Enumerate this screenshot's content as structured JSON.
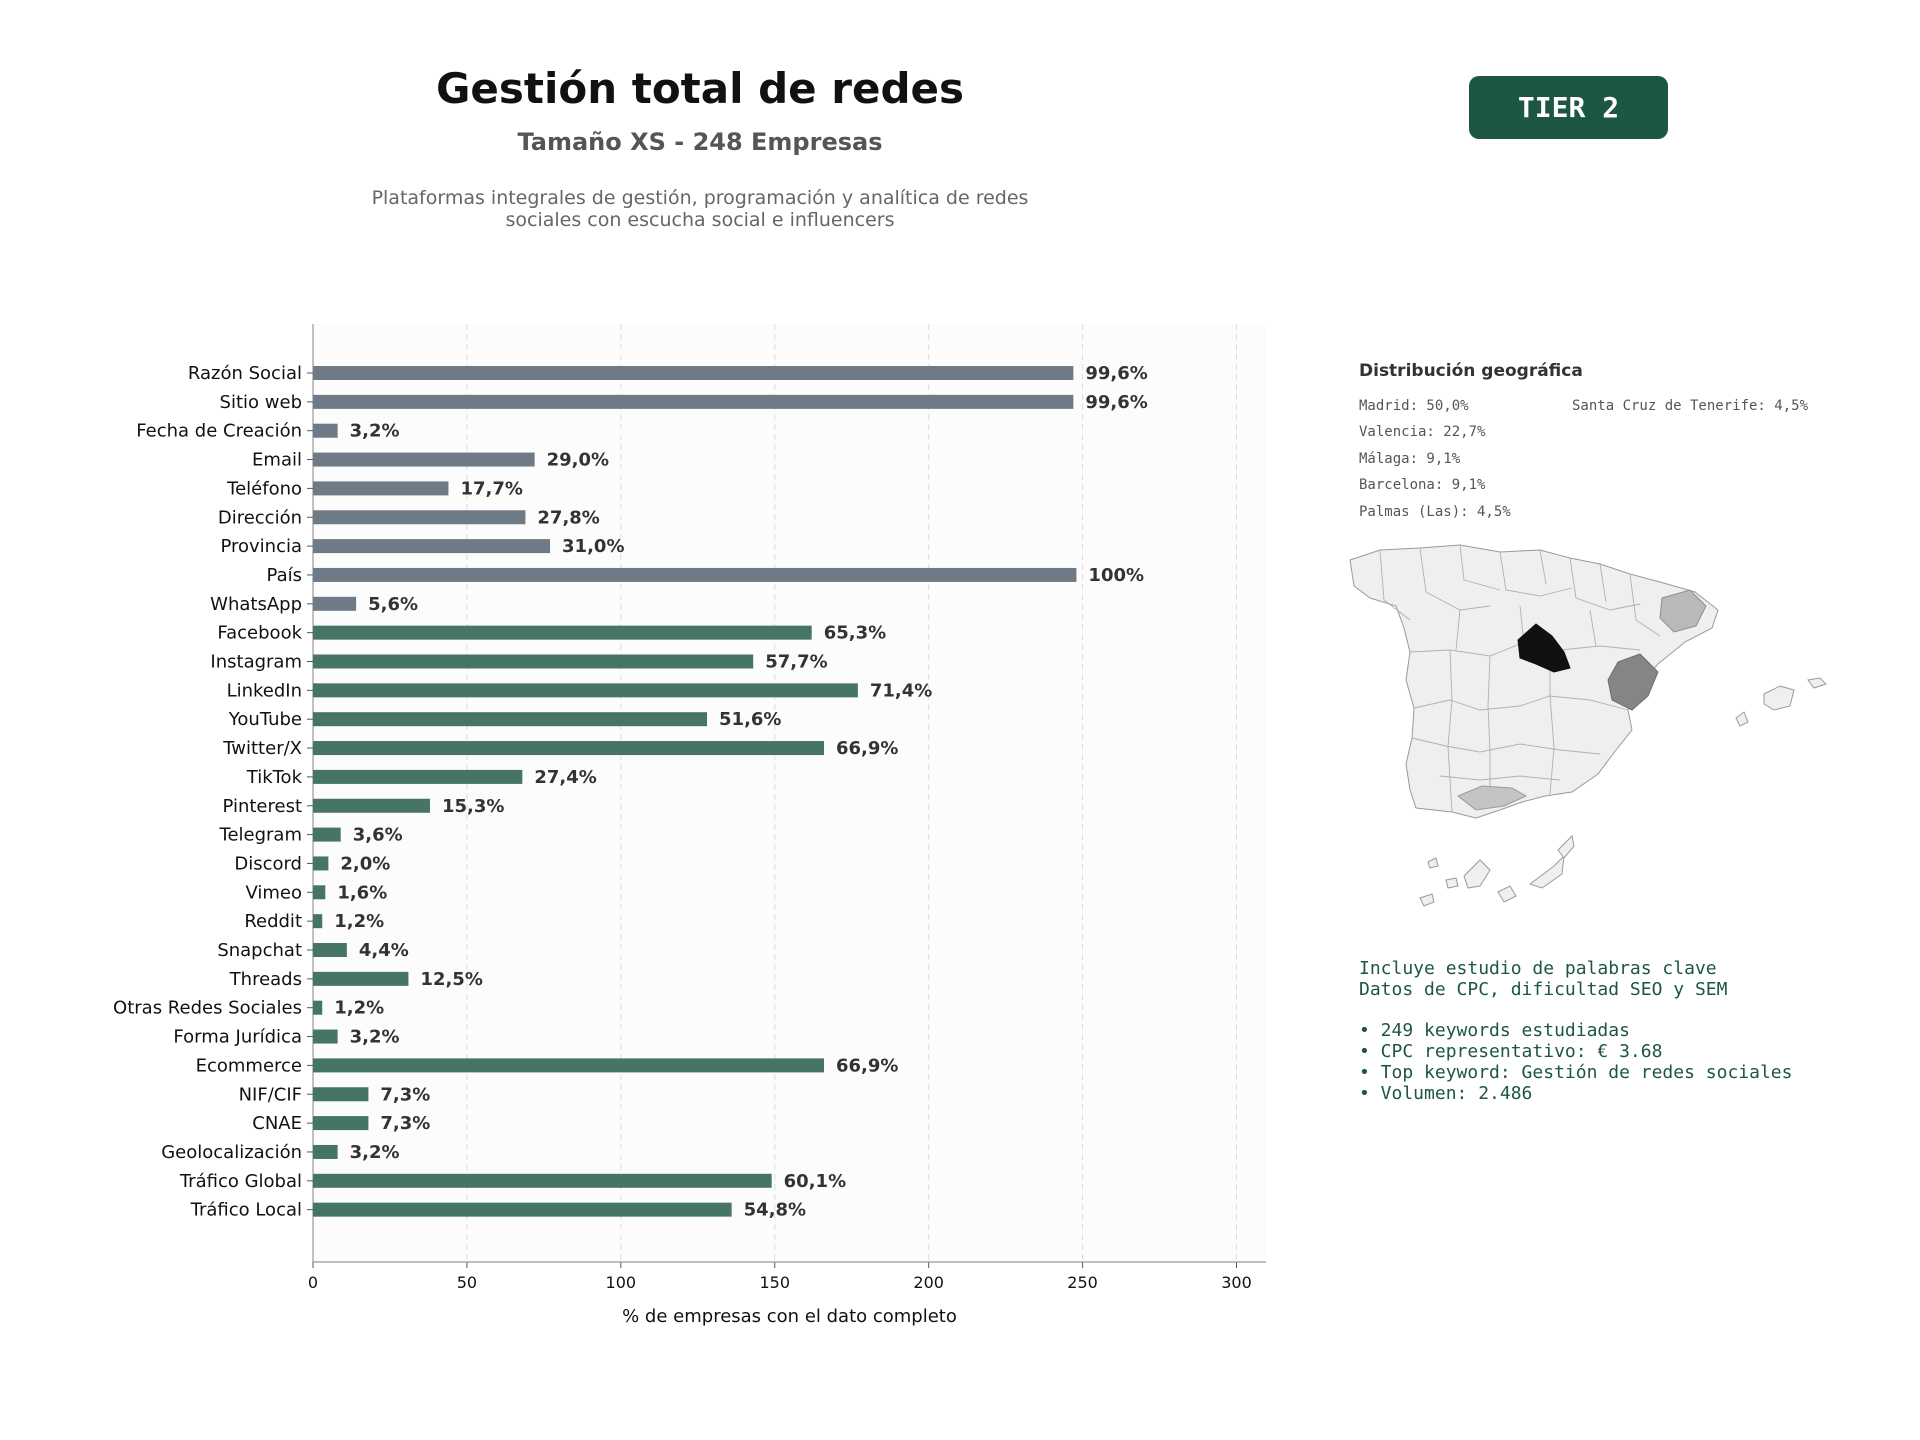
{
  "header": {
    "title": "Gestión total de redes",
    "subtitle": "Tamaño XS - 248 Empresas",
    "description_line1": "Plataformas integrales de gestión, programación y analítica de redes",
    "description_line2": "sociales con escucha social e influencers",
    "tier_label": "TIER 2"
  },
  "chart_data": {
    "type": "bar",
    "orientation": "horizontal",
    "xlabel": "% de empresas con el dato completo",
    "xlim": [
      0,
      310
    ],
    "xticks": [
      0,
      50,
      100,
      150,
      200,
      250,
      300
    ],
    "grid": true,
    "categories": [
      "Razón Social",
      "Sitio web",
      "Fecha de Creación",
      "Email",
      "Teléfono",
      "Dirección",
      "Provincia",
      "País",
      "WhatsApp",
      "Facebook",
      "Instagram",
      "LinkedIn",
      "YouTube",
      "Twitter/X",
      "TikTok",
      "Pinterest",
      "Telegram",
      "Discord",
      "Vimeo",
      "Reddit",
      "Snapchat",
      "Threads",
      "Otras Redes Sociales",
      "Forma Jurídica",
      "Ecommerce",
      "NIF/CIF",
      "CNAE",
      "Geolocalización",
      "Tráfico Global",
      "Tráfico Local"
    ],
    "values": [
      247,
      247,
      8,
      72,
      44,
      69,
      77,
      248,
      14,
      162,
      143,
      177,
      128,
      166,
      68,
      38,
      9,
      5,
      4,
      3,
      11,
      31,
      3,
      8,
      166,
      18,
      18,
      8,
      149,
      136
    ],
    "labels": [
      "99,6%",
      "99,6%",
      "3,2%",
      "29,0%",
      "17,7%",
      "27,8%",
      "31,0%",
      "100%",
      "5,6%",
      "65,3%",
      "57,7%",
      "71,4%",
      "51,6%",
      "66,9%",
      "27,4%",
      "15,3%",
      "3,6%",
      "2,0%",
      "1,6%",
      "1,2%",
      "4,4%",
      "12,5%",
      "1,2%",
      "3,2%",
      "66,9%",
      "7,3%",
      "7,3%",
      "3,2%",
      "60,1%",
      "54,8%"
    ],
    "colors": [
      "#6e7a85",
      "#6e7a85",
      "#6e7a85",
      "#6e7a85",
      "#6e7a85",
      "#6e7a85",
      "#6e7a85",
      "#6e7a85",
      "#6e7a85",
      "#467563",
      "#467563",
      "#467563",
      "#467563",
      "#467563",
      "#467563",
      "#467563",
      "#467563",
      "#467563",
      "#467563",
      "#467563",
      "#467563",
      "#467563",
      "#467563",
      "#467563",
      "#467563",
      "#467563",
      "#467563",
      "#467563",
      "#467563",
      "#467563"
    ]
  },
  "geo": {
    "title": "Distribución geográfica",
    "items": [
      {
        "label": "Madrid: 50,0%"
      },
      {
        "label": "Valencia: 22,7%"
      },
      {
        "label": "Málaga: 9,1%"
      },
      {
        "label": "Barcelona: 9,1%"
      },
      {
        "label": "Palmas (Las): 4,5%"
      },
      {
        "label": "Santa Cruz de Tenerife: 4,5%"
      }
    ]
  },
  "keywords": {
    "line1": "Incluye estudio de palabras clave",
    "line2": "Datos de CPC, dificultad SEO y SEM",
    "bullet1": "• 249 keywords estudiadas",
    "bullet2": "• CPC representativo: € 3.68",
    "bullet3": "• Top keyword: Gestión de redes sociales",
    "bullet4": "• Volumen: 2.486"
  },
  "colors": {
    "accent": "#1d5642",
    "bar_contact": "#6e7a85",
    "bar_social": "#467563"
  }
}
